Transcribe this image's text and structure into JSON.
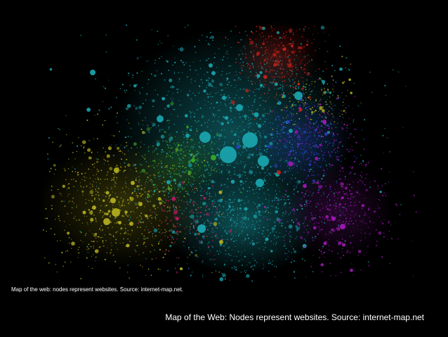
{
  "image": {
    "subject": "internet-map-network-graph",
    "background_color": "#000000",
    "cluster_colors": {
      "cyan": "#1aa6b0",
      "yellow": "#b5b01f",
      "red": "#c4221a",
      "purple": "#a21ab8",
      "blue": "#2a3fc8",
      "green": "#3aa82a",
      "pink": "#b51a5e"
    }
  },
  "captions": {
    "small": "Map of the web: nodes represent websites. Source: internet-map.net.",
    "large": "Map of the Web: Nodes represent websites. Source: internet-map.net"
  }
}
